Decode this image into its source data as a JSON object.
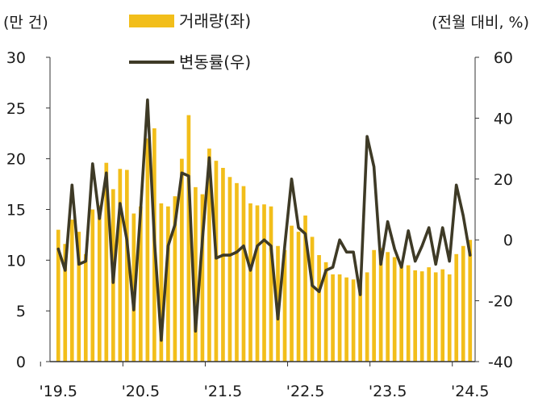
{
  "chart_data": {
    "type": "bar+line",
    "left_axis_unit": "(만 건)",
    "right_axis_unit": "(전월 대비, %)",
    "x_tick_labels": [
      "'19.5",
      "'20.5",
      "'21.5",
      "'22.5",
      "'23.5",
      "'24.5"
    ],
    "left_ylim": [
      0,
      30
    ],
    "left_yticks": [
      "0",
      "5",
      "10",
      "15",
      "20",
      "25",
      "30"
    ],
    "right_ylim": [
      -40,
      60
    ],
    "right_yticks": [
      "-40",
      "-20",
      "0",
      "20",
      "40",
      "60"
    ],
    "legend": [
      {
        "label": "거래량(좌)",
        "kind": "bar"
      },
      {
        "label": "변동률(우)",
        "kind": "line"
      }
    ],
    "colors": {
      "bar": "#F2BE1A",
      "line": "#3E3A26",
      "axis": "#333333"
    },
    "series": [
      {
        "name": "거래량(좌)",
        "axis": "left",
        "values": [
          13.0,
          11.6,
          14.0,
          12.8,
          10.6,
          15.0,
          15.4,
          19.6,
          17.0,
          19.0,
          18.9,
          14.6,
          15.3,
          22.0,
          23.0,
          15.6,
          15.3,
          16.3,
          20.0,
          24.3,
          17.2,
          16.5,
          21.0,
          19.8,
          19.1,
          18.2,
          17.6,
          17.3,
          15.6,
          15.4,
          15.5,
          15.3,
          11.4,
          11.0,
          13.4,
          12.8,
          14.4,
          12.3,
          10.5,
          9.8,
          8.6,
          8.6,
          8.3,
          8.1,
          7.9,
          8.8,
          11.0,
          11.2,
          10.8,
          10.3,
          9.8,
          9.5,
          9.0,
          8.9,
          9.3,
          8.8,
          9.1,
          8.6,
          10.6,
          11.4,
          12.0
        ]
      },
      {
        "name": "변동률(우)",
        "axis": "right",
        "values": [
          -3,
          -10,
          18,
          -8,
          -7,
          25,
          7,
          22,
          -14,
          12,
          0,
          -23,
          10,
          46,
          0,
          -33,
          -2,
          5,
          22,
          21,
          -30,
          0,
          27,
          -6,
          -5,
          -5,
          -4,
          -2,
          -10,
          -2,
          0,
          -2,
          -26,
          -2,
          20,
          4,
          2,
          -15,
          -17,
          -10,
          -9,
          0,
          -4,
          -4,
          -18,
          34,
          24,
          -8,
          6,
          -3,
          -9,
          3,
          -7,
          -2,
          4,
          -8,
          4,
          -7,
          18,
          8,
          -5
        ]
      }
    ]
  }
}
